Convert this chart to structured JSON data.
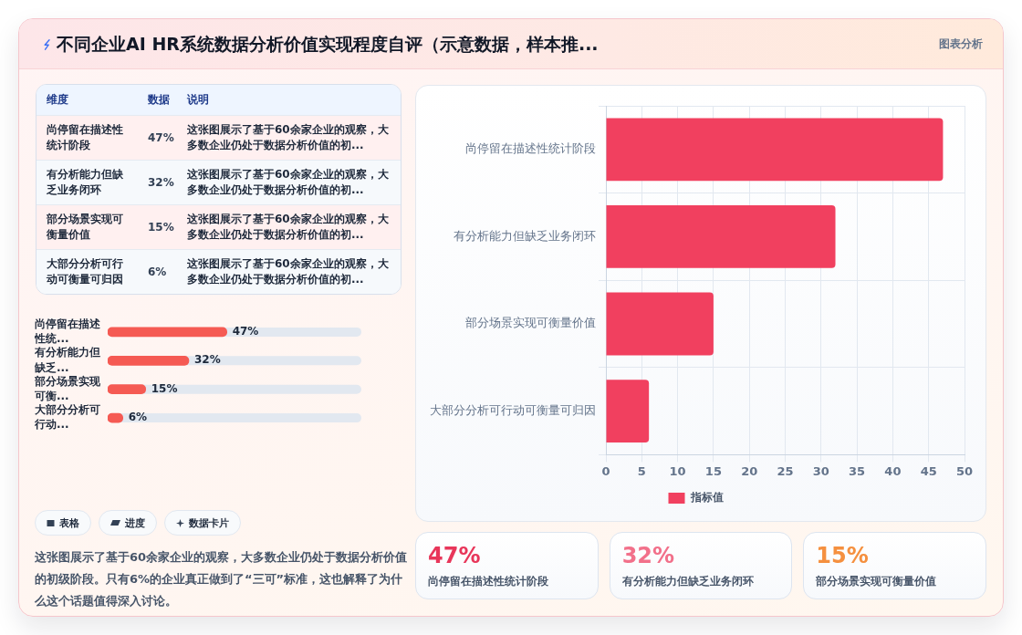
{
  "chart_data": [
    {
      "type": "other",
      "title": "不同企业AI HR系统数据分析价值实现程度自评（示意数据，样本推...",
      "annotations": [
        "图表分析"
      ]
    },
    {
      "type": "other",
      "annotations": [
        "维度",
        "数据",
        "说明",
        "尚停留在描述性统计阶段",
        "47%",
        "这张图展示了基于60余家企业的观察，大多数企业仍处于数据分析价值的初...",
        "有分析能力但缺乏业务闭环",
        "32%",
        "这张图展示了基于60余家企业的观察，大多数企业仍处于数据分析价值的初...",
        "部分场景实现可衡量价值",
        "15%",
        "这张图展示了基于60余家企业的观察，大多数企业仍处于数据分析价值的初...",
        "大部分分析可行动可衡量可归因",
        "6%",
        "这张图展示了基于60余家企业的观察，大多数企业仍处于数据分析价值的初..."
      ]
    },
    {
      "type": "bar",
      "orientation": "horizontal",
      "categories": [
        "尚停留在描述性统计阶段",
        "有分析能力但缺乏业务闭环",
        "部分场景实现可衡量价值",
        "大部分分析可行动可衡量可归因"
      ],
      "series": [
        {
          "name": "指标值",
          "color": "#f1405f",
          "values": [
            47,
            32,
            15,
            6
          ]
        }
      ],
      "xlim": [
        0,
        50
      ],
      "xticks": [
        0,
        5,
        10,
        15,
        20,
        25,
        30,
        35,
        40,
        45,
        50
      ],
      "grid": true,
      "legend": "bottom"
    },
    {
      "type": "bar",
      "orientation": "horizontal",
      "categories": [
        "尚停留在描述性统...",
        "有分析能力但缺乏...",
        "部分场景实现可衡...",
        "大部分分析可行动..."
      ],
      "values": [
        47,
        32,
        15,
        6
      ],
      "color": "#f55a53",
      "value_labels": [
        "47%",
        "32%",
        "15%",
        "6%"
      ],
      "tick_labels": "y"
    },
    {
      "type": "other",
      "annotations": [
        "表格",
        "进度",
        "数据卡片",
        "这张图展示了基于60余家企业的观察，大多数企业仍处于数据分析价值的初级阶段。只有6%的企业真正做到了“三可”标准，这也解释了为什么这个话题值得深入讨论。"
      ]
    },
    {
      "type": "other",
      "annotations": [
        "47%",
        "尚停留在描述性统计阶段",
        "32%",
        "有分析能力但缺乏业务闭环",
        "15%",
        "部分场景实现可衡量价值"
      ],
      "colors": [
        "#e8365a",
        "#f2708a",
        "#f5903f"
      ]
    }
  ]
}
